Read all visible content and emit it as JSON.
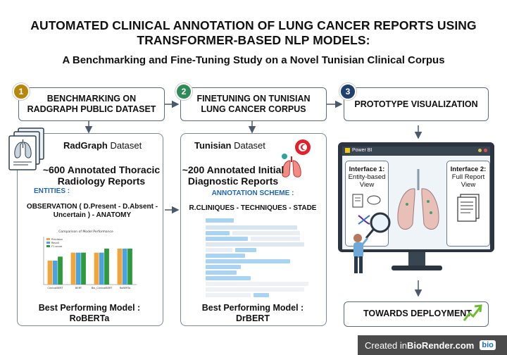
{
  "title": {
    "line1": "AUTOMATED  CLINICAL ANNOTATION OF LUNG CANCER REPORTS USING",
    "line2": "TRANSFORMER-BASED NLP MODELS:",
    "subtitle": "A Benchmarking and Fine-Tuning Study on a Novel Tunisian Clinical Corpus"
  },
  "steps": [
    {
      "number": "1",
      "label_line1": "BENCHMARKING ON",
      "label_line2": "RADGRAPH PUBLIC DATASET",
      "badge_color": "#b8860b"
    },
    {
      "number": "2",
      "label_line1": "FINETUNING ON TUNISIAN",
      "label_line2": "LUNG CANCER CORPUS",
      "badge_color": "#2e8b57"
    },
    {
      "number": "3",
      "label_line1": "PROTOTYPE VISUALIZATION",
      "label_line2": "",
      "badge_color": "#1f3f6e"
    }
  ],
  "radgraph": {
    "dataset_name": "RadGraph",
    "dataset_word": " Dataset",
    "count_line1": "~600 Annotated Thoracic",
    "count_line2": "Radiology Reports",
    "entities_label": "ENTITIES :",
    "entities_line1_bold": "OBSERVATION (",
    "entities_line1_rest": " D.Present - D.Absent -",
    "entities_line2_rest": "Uncertain ) -  ",
    "entities_line2_bold": "ANATOMY",
    "best_line1": "Best Performing Model :",
    "best_line2": "RoBERTa"
  },
  "tunisian": {
    "dataset_name": "Tunisian",
    "dataset_word": " Dataset",
    "count_line1": "~200 Annotated Initial",
    "count_line2": "Diagnostic Reports",
    "scheme_label": "ANNOTATION SCHEME :",
    "scheme_value": "R.CLINIQUES - TECHNIQUES - STADE",
    "best_line1": "Best Performing Model :",
    "best_line2": "DrBERT"
  },
  "prototype": {
    "app_name": "Power BI",
    "interface1_title": "Interface 1:",
    "interface1_line1": "Entity-based",
    "interface1_line2": "View",
    "interface2_title": "Interface 2:",
    "interface2_line1": "Full Report",
    "interface2_line2": "View"
  },
  "deployment": {
    "label": "TOWARDS DEPLOYMENT"
  },
  "chart_data": {
    "type": "bar",
    "title": "Comparison of Model Performance",
    "categories": [
      "ClinicalBERT",
      "BERT",
      "Bio_ClinicalBERT",
      "RoBERTa"
    ],
    "series": [
      {
        "name": "Precision",
        "values": [
          0.94,
          0.96,
          0.96,
          0.97
        ],
        "color": "#f2a53a"
      },
      {
        "name": "Recall",
        "values": [
          0.94,
          0.96,
          0.96,
          0.97
        ],
        "color": "#4aa3df"
      },
      {
        "name": "F1-score",
        "values": [
          0.95,
          0.96,
          0.97,
          0.97
        ],
        "color": "#2e9a3e"
      }
    ],
    "ylim": [
      0.88,
      1.0
    ],
    "legend": "top-left"
  },
  "footer": {
    "prefix": "Created in ",
    "brand": "BioRender.com",
    "logo": "bio"
  },
  "colors": {
    "border": "#5b6b7c",
    "accent_blue": "#1f66b5",
    "highlight": "#a9d3f0",
    "arrow": "#4a5a6a"
  }
}
